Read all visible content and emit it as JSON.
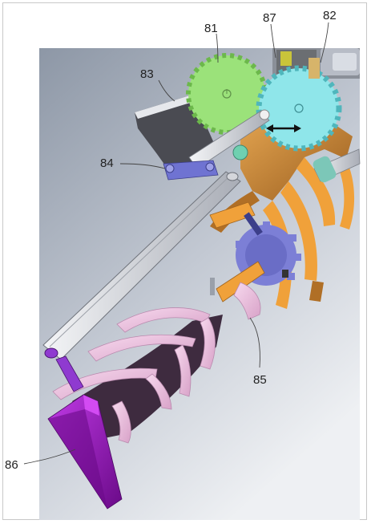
{
  "figure": {
    "labels": {
      "l81": "81",
      "l82": "82",
      "l83": "83",
      "l84": "84",
      "l85": "85",
      "l86": "86",
      "l87": "87"
    }
  },
  "colors": {
    "background_top": "#8d97a6",
    "background_bottom": "#eef0f3",
    "gear_green": "#9be27a",
    "gear_cyan": "#8fe6ea",
    "gear_blue": "#7c7fd6",
    "bronze": "#c98632",
    "orange": "#f0a13a",
    "link_blue": "#6f73d2",
    "gray_link": "#d9dbe0",
    "pink_hand": "#f1c7e3",
    "dark_hand": "#3e2b3f",
    "purple_tip": "#a10fc9"
  },
  "icons": {
    "arrow": "double-headed-arrow"
  }
}
